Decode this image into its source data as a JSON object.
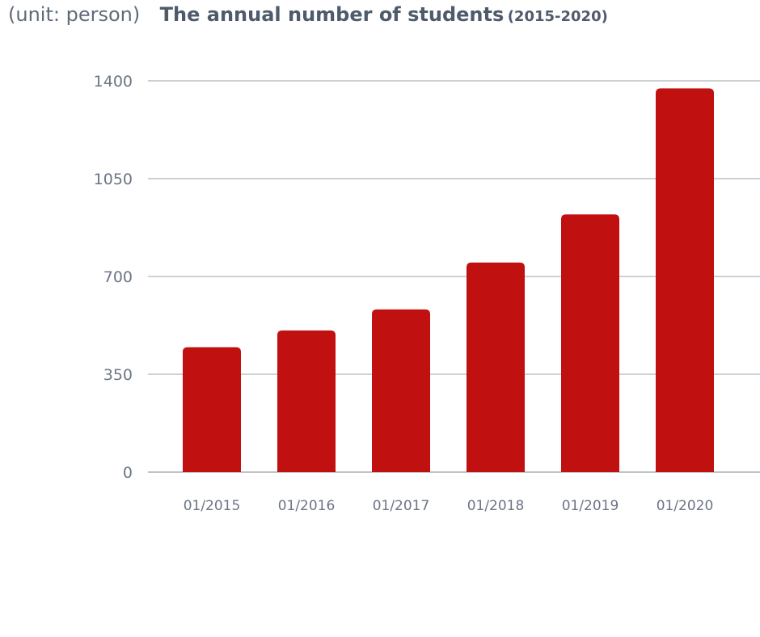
{
  "header": {
    "unit": "(unit: person)",
    "title": "The annual number of students",
    "subtitle": "(2015-2020)"
  },
  "chart_data": {
    "type": "bar",
    "title": "The annual number of students",
    "subtitle": "(2015-2020)",
    "unit": "(unit: person)",
    "xlabel": "",
    "ylabel": "",
    "categories": [
      "01/2015",
      "01/2016",
      "01/2017",
      "01/2018",
      "01/2019",
      "01/2020"
    ],
    "values": [
      447,
      507,
      582,
      750,
      922,
      1373
    ],
    "ylim": [
      0,
      1400
    ],
    "yticks": [
      0,
      350,
      700,
      1050,
      1400
    ],
    "grid": true,
    "legend": "none",
    "bar_color": "#c01010",
    "grid_color": "#b0b4ba",
    "axis_color": "#9aa0a8"
  }
}
